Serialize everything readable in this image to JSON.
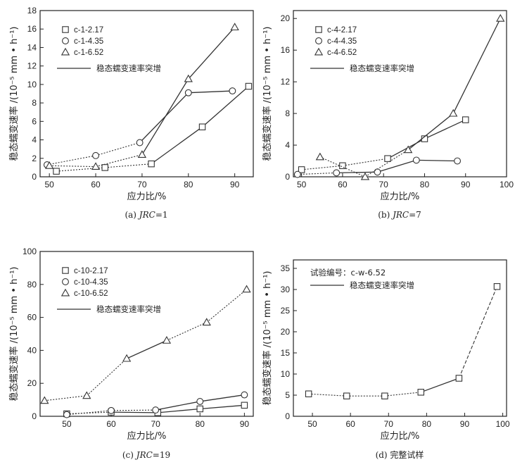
{
  "chart_data": [
    {
      "type": "line",
      "caption": "(a) JRC=1",
      "caption_parts": [
        "(a) ",
        "JRC",
        "=1"
      ],
      "xlabel": "应力比/%",
      "ylabel": "稳态蠕变速率 /(10⁻⁵ mm • h⁻¹)",
      "xlim": [
        48,
        94
      ],
      "ylim": [
        0,
        18
      ],
      "xticks": [
        50,
        60,
        70,
        80,
        90
      ],
      "yticks": [
        0,
        2,
        4,
        6,
        8,
        10,
        12,
        14,
        16,
        18
      ],
      "legend_position": "top-left",
      "legend_line_label": "稳态蠕变速率突增",
      "series": [
        {
          "name": "c-1-2.17",
          "marker": "square",
          "x": [
            51.5,
            62,
            72,
            83,
            93
          ],
          "y": [
            0.6,
            1.0,
            1.4,
            5.4,
            9.8
          ],
          "solid_from": 2
        },
        {
          "name": "c-1-4.35",
          "marker": "circle",
          "x": [
            49.5,
            60,
            69.5,
            80,
            89.5
          ],
          "y": [
            1.3,
            2.3,
            3.7,
            9.1,
            9.3
          ],
          "solid_from": 2
        },
        {
          "name": "c-1-6.52",
          "marker": "triangle",
          "x": [
            50,
            60,
            70,
            80,
            90
          ],
          "y": [
            1.2,
            1.1,
            2.4,
            10.6,
            16.2
          ],
          "solid_from": 2
        }
      ]
    },
    {
      "type": "line",
      "caption": "(b) JRC=7",
      "caption_parts": [
        "(b) ",
        "JRC",
        "=7"
      ],
      "xlabel": "应力比/%",
      "ylabel": "稳态蠕变速率 /(10⁻⁵ mm • h⁻¹)",
      "xlim": [
        48,
        100
      ],
      "ylim": [
        0,
        21
      ],
      "xticks": [
        50,
        60,
        70,
        80,
        90,
        100
      ],
      "yticks": [
        0,
        4,
        8,
        12,
        16,
        20
      ],
      "legend_position": "top-left",
      "legend_line_label": "稳态蠕变速率突增",
      "series": [
        {
          "name": "c-4-2.17",
          "marker": "square",
          "x": [
            50,
            60,
            71,
            80,
            90
          ],
          "y": [
            0.9,
            1.4,
            2.3,
            4.8,
            7.2
          ],
          "solid_from": 2
        },
        {
          "name": "c-4-4.35",
          "marker": "circle",
          "x": [
            49,
            58.5,
            68.5,
            78,
            88
          ],
          "y": [
            0.3,
            0.5,
            0.6,
            2.1,
            2.0
          ],
          "solid_from": 1
        },
        {
          "name": "c-4-6.52",
          "marker": "triangle",
          "x": [
            54.5,
            65.5,
            76,
            87,
            98.5
          ],
          "y": [
            2.5,
            0.0,
            3.4,
            8.0,
            20.0
          ],
          "solid_from": 2
        }
      ]
    },
    {
      "type": "line",
      "caption": "(c) JRC=19",
      "caption_parts": [
        "(c) ",
        "JRC",
        "=19"
      ],
      "xlabel": "应力比/%",
      "ylabel": "稳态蠕变速率 /(10⁻⁵ mm • h⁻¹)",
      "xlim": [
        44,
        92
      ],
      "ylim": [
        0,
        100
      ],
      "xticks": [
        50,
        60,
        70,
        80,
        90
      ],
      "yticks": [
        0,
        20,
        40,
        60,
        80,
        100
      ],
      "legend_position": "top-left",
      "legend_line_label": "稳态蠕变速率突增",
      "series": [
        {
          "name": "c-10-2.17",
          "marker": "square",
          "x": [
            50,
            60,
            70.5,
            80,
            90
          ],
          "y": [
            1.5,
            2.5,
            2.2,
            4.5,
            6.7
          ],
          "solid_from": 1
        },
        {
          "name": "c-10-4.35",
          "marker": "circle",
          "x": [
            50,
            60,
            70,
            80,
            90
          ],
          "y": [
            1.0,
            3.5,
            3.8,
            9.0,
            13.0
          ],
          "solid_from": 2
        },
        {
          "name": "c-10-6.52",
          "marker": "triangle",
          "x": [
            45,
            54.5,
            63.5,
            72.5,
            81.5,
            90.5
          ],
          "y": [
            9.5,
            12.5,
            35.0,
            46.0,
            57.0,
            77.0
          ],
          "solid_from": 2,
          "solid_to": 3
        }
      ]
    },
    {
      "type": "line",
      "caption": "(d) 完整试样",
      "caption_parts": [
        "(d) ",
        "",
        "完整试样"
      ],
      "xlabel": "应力比/%",
      "ylabel": "稳态蠕变速率 /(10⁻⁵ mm • h⁻¹)",
      "xlim": [
        45,
        101
      ],
      "ylim": [
        0,
        37
      ],
      "xticks": [
        50,
        60,
        70,
        80,
        90,
        100
      ],
      "yticks": [
        0,
        5,
        10,
        15,
        20,
        25,
        30,
        35
      ],
      "legend_position": "top-left",
      "legend_title": "试验编号：c-w-6.52",
      "legend_line_label": "稳态蠕变速率突增",
      "series": [
        {
          "name": "c-w-6.52",
          "marker": "square",
          "x": [
            49,
            59,
            69,
            78.5,
            88.5,
            98.5
          ],
          "y": [
            5.3,
            4.8,
            4.8,
            5.7,
            9.0,
            30.7
          ],
          "solid_from": 3,
          "solid_to": 4,
          "dashed_after": true
        }
      ]
    }
  ]
}
